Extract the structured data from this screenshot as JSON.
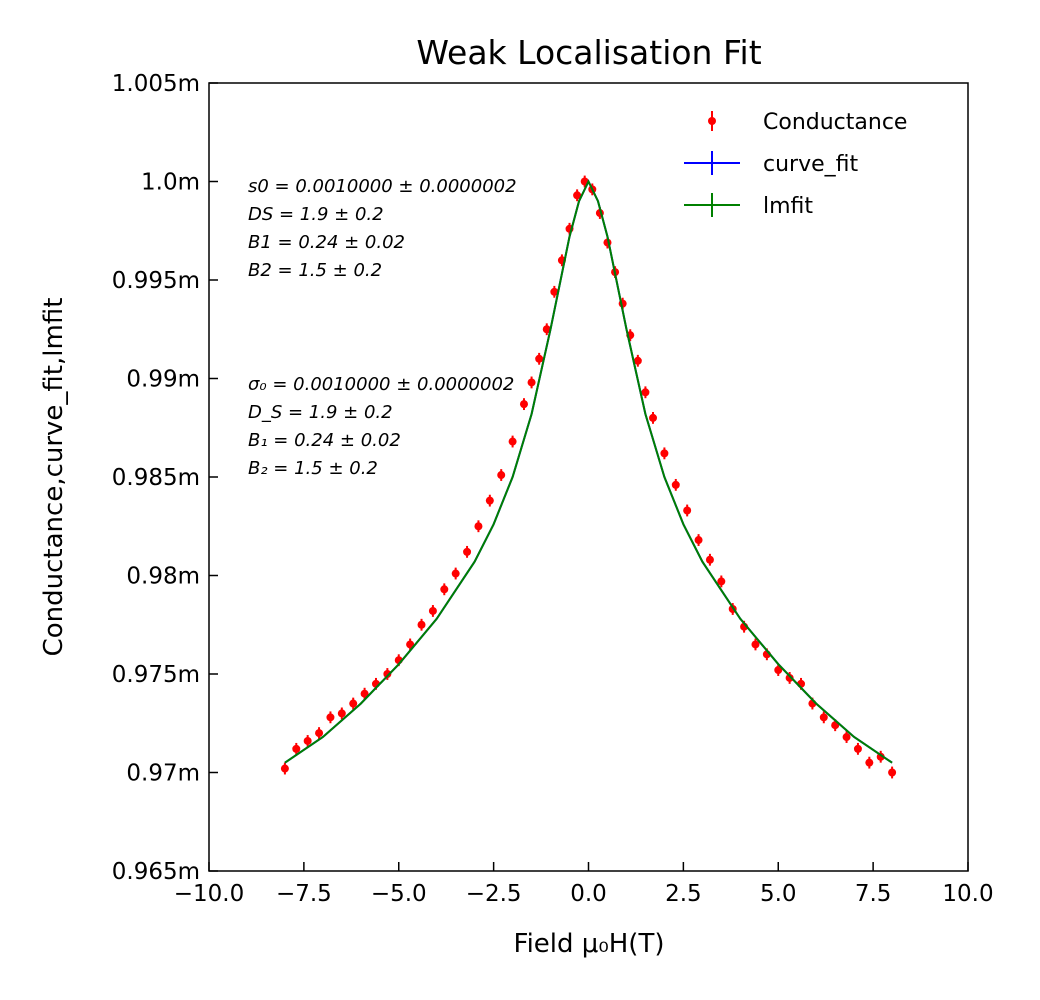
{
  "chart_data": {
    "type": "scatter",
    "title": "Weak Localisation Fit",
    "xlabel": "Field μ₀H(T)",
    "ylabel": "Conductance,curve_fit,lmfit",
    "xlim": [
      -10,
      10
    ],
    "ylim": [
      0.000965,
      0.001005
    ],
    "x_ticks": [
      "−10.0",
      "−7.5",
      "−5.0",
      "−2.5",
      "0.0",
      "2.5",
      "5.0",
      "7.5",
      "10.0"
    ],
    "y_ticks": [
      "0.965m",
      "0.97m",
      "0.975m",
      "0.98m",
      "0.985m",
      "0.99m",
      "0.995m",
      "1.0m",
      "1.005m"
    ],
    "grid": false,
    "legend_position": "top-right",
    "fit_params": {
      "s0": 0.001,
      "DS": 1.9,
      "B1": 0.24,
      "B2": 1.5
    },
    "series": [
      {
        "name": "Conductance",
        "kind": "errorbar-points",
        "color": "#ff0000",
        "x": [
          -8.0,
          -7.7,
          -7.4,
          -7.1,
          -6.8,
          -6.5,
          -6.2,
          -5.9,
          -5.6,
          -5.3,
          -5.0,
          -4.7,
          -4.4,
          -4.1,
          -3.8,
          -3.5,
          -3.2,
          -2.9,
          -2.6,
          -2.3,
          -2.0,
          -1.7,
          -1.5,
          -1.3,
          -1.1,
          -0.9,
          -0.7,
          -0.5,
          -0.3,
          -0.1,
          0.1,
          0.3,
          0.5,
          0.7,
          0.9,
          1.1,
          1.3,
          1.5,
          1.7,
          2.0,
          2.3,
          2.6,
          2.9,
          3.2,
          3.5,
          3.8,
          4.1,
          4.4,
          4.7,
          5.0,
          5.3,
          5.6,
          5.9,
          6.2,
          6.5,
          6.8,
          7.1,
          7.4,
          7.7,
          8.0
        ],
        "y": [
          0.0009702,
          0.0009712,
          0.0009716,
          0.000972,
          0.0009728,
          0.000973,
          0.0009735,
          0.000974,
          0.0009745,
          0.000975,
          0.0009757,
          0.0009765,
          0.0009775,
          0.0009782,
          0.0009793,
          0.0009801,
          0.0009812,
          0.0009825,
          0.0009838,
          0.0009851,
          0.0009868,
          0.0009887,
          0.0009898,
          0.000991,
          0.0009925,
          0.0009944,
          0.000996,
          0.0009976,
          0.0009993,
          0.001,
          0.0009996,
          0.0009984,
          0.0009969,
          0.0009954,
          0.0009938,
          0.0009922,
          0.0009909,
          0.0009893,
          0.000988,
          0.0009862,
          0.0009846,
          0.0009833,
          0.0009818,
          0.0009808,
          0.0009797,
          0.0009783,
          0.0009774,
          0.0009765,
          0.000976,
          0.0009752,
          0.0009748,
          0.0009745,
          0.0009735,
          0.0009728,
          0.0009724,
          0.0009718,
          0.0009712,
          0.0009705,
          0.0009708,
          0.00097
        ],
        "yerr": 3e-07
      },
      {
        "name": "curve_fit",
        "kind": "line",
        "color": "#0000ff",
        "x": [
          -8.0,
          -7.0,
          -6.0,
          -5.0,
          -4.0,
          -3.0,
          -2.5,
          -2.0,
          -1.5,
          -1.0,
          -0.5,
          -0.25,
          0.0,
          0.25,
          0.5,
          1.0,
          1.5,
          2.0,
          2.5,
          3.0,
          4.0,
          5.0,
          6.0,
          7.0,
          8.0
        ],
        "y": [
          0.0009705,
          0.0009718,
          0.0009735,
          0.0009755,
          0.0009778,
          0.0009807,
          0.0009826,
          0.000985,
          0.0009882,
          0.0009925,
          0.0009972,
          0.000999,
          0.001,
          0.000999,
          0.0009972,
          0.0009925,
          0.0009882,
          0.000985,
          0.0009826,
          0.0009807,
          0.0009778,
          0.0009755,
          0.0009735,
          0.0009718,
          0.0009705
        ]
      },
      {
        "name": "lmfit",
        "kind": "line",
        "color": "#008000",
        "x": [
          -8.0,
          -7.0,
          -6.0,
          -5.0,
          -4.0,
          -3.0,
          -2.5,
          -2.0,
          -1.5,
          -1.0,
          -0.5,
          -0.25,
          0.0,
          0.25,
          0.5,
          1.0,
          1.5,
          2.0,
          2.5,
          3.0,
          4.0,
          5.0,
          6.0,
          7.0,
          8.0
        ],
        "y": [
          0.0009705,
          0.0009718,
          0.0009735,
          0.0009755,
          0.0009778,
          0.0009807,
          0.0009826,
          0.000985,
          0.0009882,
          0.0009925,
          0.0009972,
          0.000999,
          0.001,
          0.000999,
          0.0009972,
          0.0009925,
          0.0009882,
          0.000985,
          0.0009826,
          0.0009807,
          0.0009778,
          0.0009755,
          0.0009735,
          0.0009718,
          0.0009705
        ]
      }
    ],
    "annotations": [
      {
        "color": "#0000ff",
        "lines": [
          "s0 = 0.0010000 ± 0.0000002",
          "DS = 1.9 ± 0.2",
          "B1 = 0.24 ± 0.02",
          "B2 = 1.5 ± 0.2"
        ]
      },
      {
        "color": "#008000",
        "lines": [
          "σ₀ = 0.0010000 ± 0.0000002",
          "D_S = 1.9 ± 0.2",
          "B₁ = 0.24 ± 0.02",
          "B₂ = 1.5 ± 0.2"
        ]
      }
    ]
  }
}
